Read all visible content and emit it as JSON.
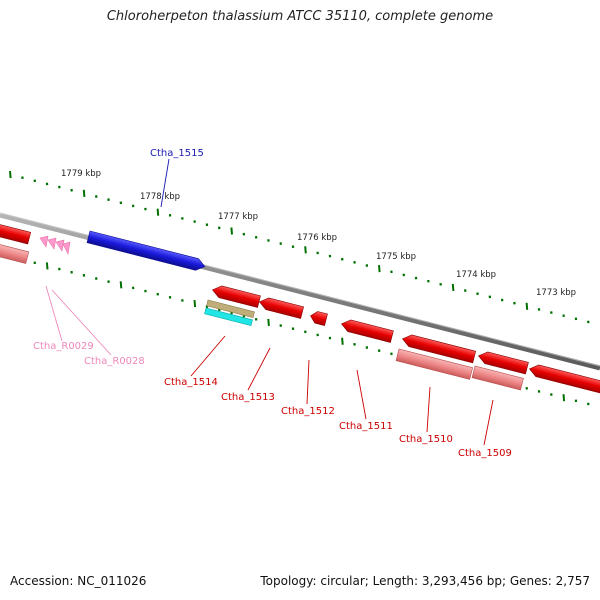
{
  "title": "Chloroherpeton thalassium ATCC 35110, complete genome",
  "footer": {
    "accession": "Accession: NC_011026",
    "summary": "Topology: circular; Length: 3,293,456 bp; Genes: 2,757"
  },
  "scale": {
    "labels": [
      "1779 kbp",
      "1778 kbp",
      "1777 kbp",
      "1776 kbp",
      "1775 kbp",
      "1774 kbp",
      "1773 kbp"
    ]
  },
  "genes": {
    "ctha_1515": "Ctha_1515",
    "ctha_1514": "Ctha_1514",
    "ctha_1513": "Ctha_1513",
    "ctha_1512": "Ctha_1512",
    "ctha_1511": "Ctha_1511",
    "ctha_1510": "Ctha_1510",
    "ctha_1509": "Ctha_1509",
    "ctha_r0029": "Ctha_R0029",
    "ctha_r0028": "Ctha_R0028"
  },
  "colors": {
    "plus_strand_gene": "#1a1adb",
    "minus_strand_gene": "#e60000",
    "pseudo_gene": "#ee8888",
    "rna_gene": "#ff99cc",
    "gene_label_plus": "#1a1ab0",
    "gene_label_minus": "#cc0000",
    "rna_label": "#ee88bb",
    "backbone": "#808080",
    "tick": "#007000",
    "cds_feature": "#bfae7a",
    "feature_cyan": "#22e6e6"
  }
}
